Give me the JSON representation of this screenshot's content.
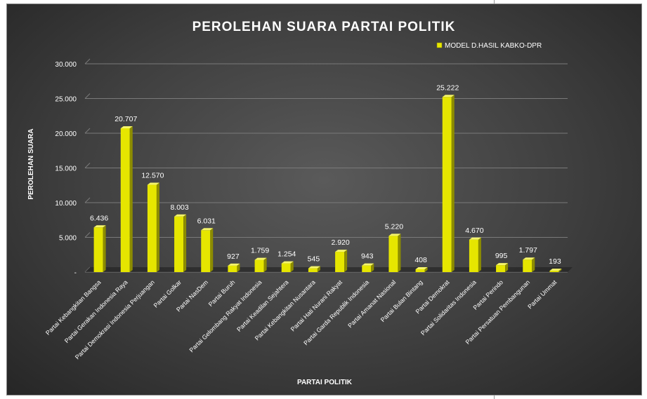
{
  "chart_data": {
    "type": "bar",
    "title": "PEROLEHAN SUARA PARTAI POLITIK",
    "xlabel": "PARTAI POLITIK",
    "ylabel": "PEROLEHAN SUARA",
    "ylim": [
      0,
      30000
    ],
    "yticks": [
      {
        "value": 0,
        "label": "-"
      },
      {
        "value": 5000,
        "label": "5.000"
      },
      {
        "value": 10000,
        "label": "10.000"
      },
      {
        "value": 15000,
        "label": "15.000"
      },
      {
        "value": 20000,
        "label": "20.000"
      },
      {
        "value": 25000,
        "label": "25.000"
      },
      {
        "value": 30000,
        "label": "30.000"
      }
    ],
    "grid": true,
    "legend_position": "top-right",
    "categories": [
      "Partai Kebangkitan Bangsa",
      "Partai Gerakan Indonesia Raya",
      "Partai Demokrasi Indonesia Perjuangan",
      "Partai Golkar",
      "Partai NasDem",
      "Partai Buruh",
      "Partai Gelombang Rakyat Indonesia",
      "Partai Keadilan Sejahtera",
      "Partai Kebangkitan Nusantara",
      "Partai Hati Nurani Rakyat",
      "Partai Garda Republik Indonesia",
      "Partai Amanat Nasional",
      "Partai Bulan Bintang",
      "Partai Demokrat",
      "Partai Solidaritas Indonesia",
      "Partai Perindo",
      "Partai Persatuan Pembangunan",
      "Partai Ummat"
    ],
    "series": [
      {
        "name": "MODEL D.HASIL KABKO-DPR",
        "color": "#e8e800",
        "values": [
          6436,
          20707,
          12570,
          8003,
          6031,
          927,
          1759,
          1254,
          545,
          2920,
          943,
          5220,
          408,
          25222,
          4670,
          995,
          1797,
          193
        ],
        "labels": [
          "6.436",
          "20.707",
          "12.570",
          "8.003",
          "6.031",
          "927",
          "1.759",
          "1.254",
          "545",
          "2.920",
          "943",
          "5.220",
          "408",
          "25.222",
          "4.670",
          "995",
          "1.797",
          "193"
        ]
      }
    ]
  }
}
